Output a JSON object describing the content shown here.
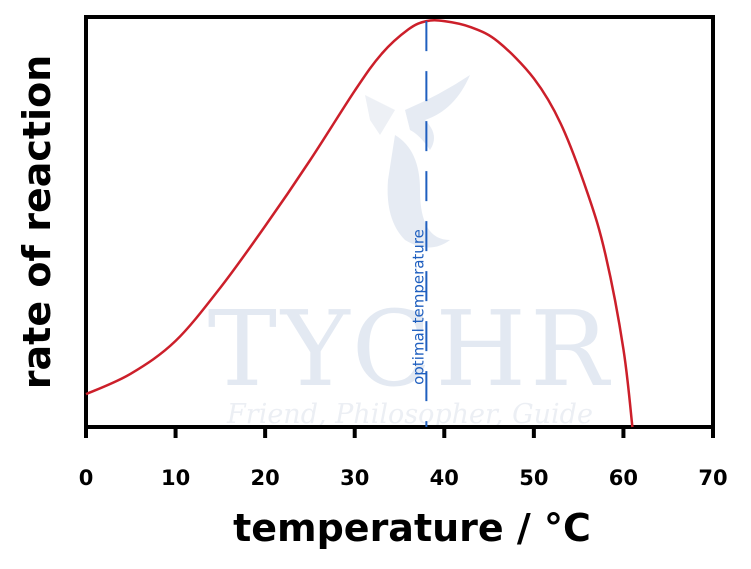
{
  "chart_data": {
    "type": "line",
    "xlabel": "temperature / °C",
    "ylabel": "rate of reaction",
    "xlim": [
      0,
      70
    ],
    "ylim": [
      0,
      1
    ],
    "xticks": [
      "0",
      "10",
      "20",
      "30",
      "40",
      "50",
      "60",
      "70"
    ],
    "grid": false,
    "series": [
      {
        "color": "#cc1f2a",
        "points": [
          [
            0,
            0.08
          ],
          [
            5,
            0.13
          ],
          [
            10,
            0.21
          ],
          [
            15,
            0.34
          ],
          [
            20,
            0.49
          ],
          [
            25,
            0.65
          ],
          [
            30,
            0.82
          ],
          [
            33,
            0.91
          ],
          [
            36,
            0.97
          ],
          [
            38,
            0.99
          ],
          [
            40,
            0.99
          ],
          [
            43,
            0.975
          ],
          [
            46,
            0.94
          ],
          [
            50,
            0.85
          ],
          [
            53,
            0.74
          ],
          [
            56,
            0.57
          ],
          [
            58,
            0.42
          ],
          [
            60,
            0.19
          ],
          [
            61,
            0.0
          ]
        ]
      }
    ],
    "annotations": [
      {
        "text": "optimal temperature",
        "x": 38,
        "style": "dashed-vertical",
        "color": "#1f5fbf"
      }
    ]
  },
  "watermark": {
    "text": "TYCHR",
    "tagline": "Friend, Philosopher, Guide"
  }
}
